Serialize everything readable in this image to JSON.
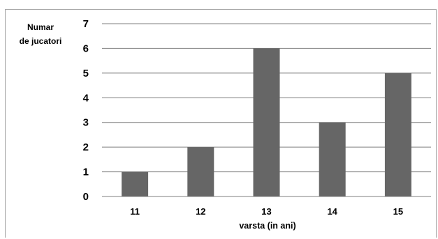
{
  "chart_data": {
    "type": "bar",
    "categories": [
      "11",
      "12",
      "13",
      "14",
      "15"
    ],
    "values": [
      1,
      2,
      6,
      3,
      5
    ],
    "ylabel_lines": [
      "Numar",
      "de jucatori"
    ],
    "xlabel": "varsta (in ani)",
    "ylim": [
      0,
      7
    ],
    "yticks": [
      "0",
      "1",
      "2",
      "3",
      "4",
      "5",
      "6",
      "7"
    ],
    "grid": true,
    "bar_color": "#666666",
    "grid_color": "#7f7f7f"
  }
}
